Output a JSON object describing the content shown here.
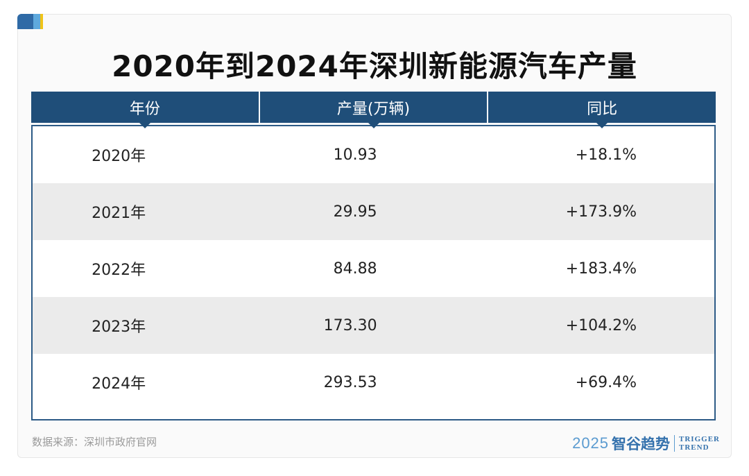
{
  "chart_data": {
    "type": "table",
    "title": "2020年到2024年深圳新能源汽车产量",
    "columns": [
      "年份",
      "产量(万辆)",
      "同比"
    ],
    "rows": [
      [
        "2020年",
        "10.93",
        "+18.1%"
      ],
      [
        "2021年",
        "29.95",
        "+173.9%"
      ],
      [
        "2022年",
        "84.88",
        "+183.4%"
      ],
      [
        "2023年",
        "173.30",
        "+104.2%"
      ],
      [
        "2024年",
        "293.53",
        "+69.4%"
      ]
    ],
    "values": [
      10.93,
      29.95,
      84.88,
      173.3,
      293.53
    ],
    "yoy_percent": [
      18.1,
      173.9,
      183.4,
      104.2,
      69.4
    ]
  },
  "footer": {
    "source": "数据来源：深圳市政府官网",
    "brand_year": "2025",
    "brand_cn": "智谷趋势",
    "brand_en_line1": "TRIGGER",
    "brand_en_line2": "TREND"
  },
  "colors": {
    "header_bg": "#1f4e79",
    "alt_row_bg": "#ebebeb",
    "brand": "#3572ad"
  }
}
